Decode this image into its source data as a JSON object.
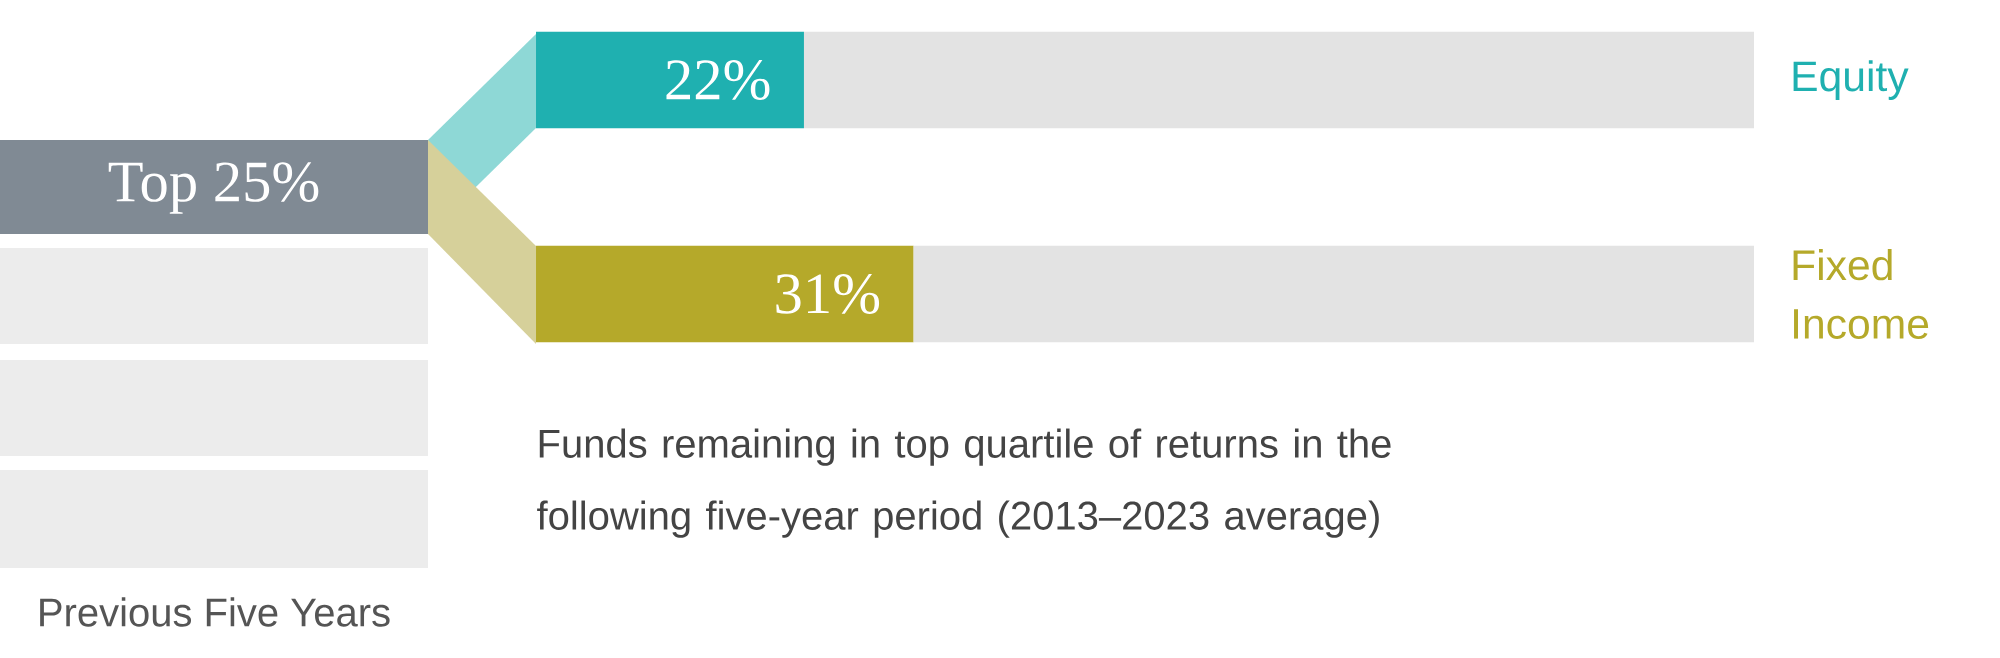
{
  "chart_data": {
    "type": "bar",
    "orientation": "horizontal",
    "stacked": true,
    "categories": [
      "Equity",
      "Fixed Income"
    ],
    "series": [
      {
        "colors": [
          "#1fb0b0",
          "#b5a92a"
        ],
        "values": [
          22,
          31
        ],
        "value_labels": [
          "22%",
          "31%"
        ]
      },
      {
        "color": "#e3e3e3",
        "values": [
          78,
          69
        ]
      }
    ],
    "xlim": [
      0,
      100
    ],
    "annotations": [
      "Top 25%",
      "Previous Five Years",
      "Funds remaining in top quartile of returns in the following five-year period (2013–2023 average)"
    ]
  }
}
